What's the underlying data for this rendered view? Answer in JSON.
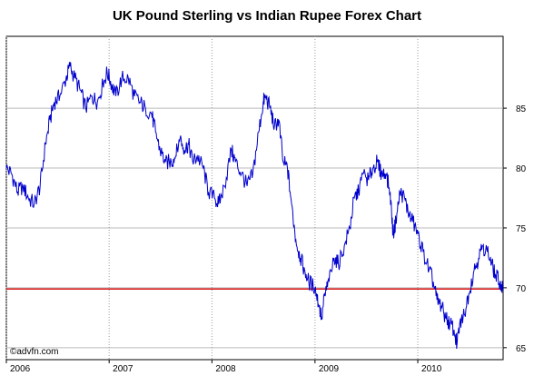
{
  "chart_data": {
    "type": "line",
    "title": "UK Pound Sterling vs Indian Rupee Forex Chart",
    "watermark": "©advfn.com",
    "x_ticks": [
      "2006",
      "2007",
      "2008",
      "2009",
      "2010"
    ],
    "y_ticks": [
      65,
      70,
      75,
      80,
      85
    ],
    "ylim": [
      64,
      91
    ],
    "xlim": [
      "2006-01-01",
      "2010-10-31"
    ],
    "grid": true,
    "line_color": "#0000cc",
    "reference_line": {
      "value": 69.9,
      "color": "#dd0000"
    },
    "series": [
      {
        "values": [
          [
            "2006-01-01",
            80.0
          ],
          [
            "2006-01-20",
            79.5
          ],
          [
            "2006-02-10",
            78.0
          ],
          [
            "2006-03-01",
            78.5
          ],
          [
            "2006-03-20",
            77.5
          ],
          [
            "2006-04-10",
            77.0
          ],
          [
            "2006-05-01",
            78.5
          ],
          [
            "2006-05-20",
            82.0
          ],
          [
            "2006-06-05",
            84.0
          ],
          [
            "2006-06-20",
            85.5
          ],
          [
            "2006-07-10",
            86.0
          ],
          [
            "2006-08-01",
            87.5
          ],
          [
            "2006-08-15",
            88.5
          ],
          [
            "2006-09-01",
            87.5
          ],
          [
            "2006-09-20",
            86.5
          ],
          [
            "2006-10-10",
            85.0
          ],
          [
            "2006-11-01",
            86.0
          ],
          [
            "2006-11-20",
            85.5
          ],
          [
            "2006-12-10",
            87.0
          ],
          [
            "2006-12-25",
            88.0
          ],
          [
            "2007-01-10",
            87.0
          ],
          [
            "2007-01-25",
            86.0
          ],
          [
            "2007-02-15",
            87.5
          ],
          [
            "2007-03-10",
            87.5
          ],
          [
            "2007-04-01",
            86.0
          ],
          [
            "2007-04-20",
            85.5
          ],
          [
            "2007-05-10",
            85.0
          ],
          [
            "2007-06-01",
            84.5
          ],
          [
            "2007-06-15",
            83.0
          ],
          [
            "2007-07-01",
            81.5
          ],
          [
            "2007-07-20",
            80.5
          ],
          [
            "2007-08-10",
            80.5
          ],
          [
            "2007-08-25",
            81.0
          ],
          [
            "2007-09-10",
            82.5
          ],
          [
            "2007-09-25",
            81.5
          ],
          [
            "2007-10-10",
            82.0
          ],
          [
            "2007-10-25",
            80.5
          ],
          [
            "2007-11-10",
            81.0
          ],
          [
            "2007-12-01",
            80.0
          ],
          [
            "2007-12-20",
            78.0
          ],
          [
            "2008-01-10",
            77.5
          ],
          [
            "2008-01-25",
            77.0
          ],
          [
            "2008-02-15",
            78.5
          ],
          [
            "2008-03-10",
            81.5
          ],
          [
            "2008-03-25",
            80.5
          ],
          [
            "2008-04-15",
            79.5
          ],
          [
            "2008-05-05",
            78.5
          ],
          [
            "2008-05-25",
            79.5
          ],
          [
            "2008-06-15",
            83.0
          ],
          [
            "2008-07-01",
            85.5
          ],
          [
            "2008-07-10",
            86.0
          ],
          [
            "2008-07-25",
            85.0
          ],
          [
            "2008-08-10",
            83.5
          ],
          [
            "2008-08-25",
            84.0
          ],
          [
            "2008-09-10",
            80.5
          ],
          [
            "2008-09-25",
            80.0
          ],
          [
            "2008-10-10",
            77.0
          ],
          [
            "2008-10-25",
            74.0
          ],
          [
            "2008-11-10",
            72.5
          ],
          [
            "2008-11-25",
            71.5
          ],
          [
            "2008-12-10",
            70.5
          ],
          [
            "2009-01-01",
            70.0
          ],
          [
            "2009-01-15",
            68.5
          ],
          [
            "2009-01-25",
            67.5
          ],
          [
            "2009-02-05",
            69.5
          ],
          [
            "2009-02-20",
            70.5
          ],
          [
            "2009-03-10",
            72.5
          ],
          [
            "2009-03-25",
            72.0
          ],
          [
            "2009-04-15",
            73.5
          ],
          [
            "2009-05-05",
            75.0
          ],
          [
            "2009-05-20",
            77.5
          ],
          [
            "2009-06-05",
            78.0
          ],
          [
            "2009-06-20",
            79.5
          ],
          [
            "2009-07-10",
            79.0
          ],
          [
            "2009-07-25",
            80.0
          ],
          [
            "2009-08-10",
            80.5
          ],
          [
            "2009-08-25",
            79.5
          ],
          [
            "2009-09-10",
            79.5
          ],
          [
            "2009-09-25",
            78.0
          ],
          [
            "2009-10-05",
            74.5
          ],
          [
            "2009-10-15",
            75.5
          ],
          [
            "2009-10-30",
            78.0
          ],
          [
            "2009-11-15",
            77.5
          ],
          [
            "2009-12-01",
            76.0
          ],
          [
            "2009-12-15",
            75.5
          ],
          [
            "2010-01-01",
            74.5
          ],
          [
            "2010-01-20",
            73.0
          ],
          [
            "2010-02-10",
            71.5
          ],
          [
            "2010-02-25",
            70.5
          ],
          [
            "2010-03-10",
            69.0
          ],
          [
            "2010-03-25",
            68.5
          ],
          [
            "2010-04-10",
            67.5
          ],
          [
            "2010-04-25",
            67.0
          ],
          [
            "2010-05-10",
            66.5
          ],
          [
            "2010-05-20",
            65.2
          ],
          [
            "2010-05-30",
            67.0
          ],
          [
            "2010-06-15",
            67.8
          ],
          [
            "2010-07-01",
            69.5
          ],
          [
            "2010-07-20",
            71.5
          ],
          [
            "2010-08-05",
            72.5
          ],
          [
            "2010-08-20",
            73.5
          ],
          [
            "2010-09-05",
            73.0
          ],
          [
            "2010-09-20",
            72.0
          ],
          [
            "2010-10-05",
            71.0
          ],
          [
            "2010-10-20",
            70.5
          ],
          [
            "2010-10-31",
            69.8
          ]
        ]
      }
    ]
  }
}
